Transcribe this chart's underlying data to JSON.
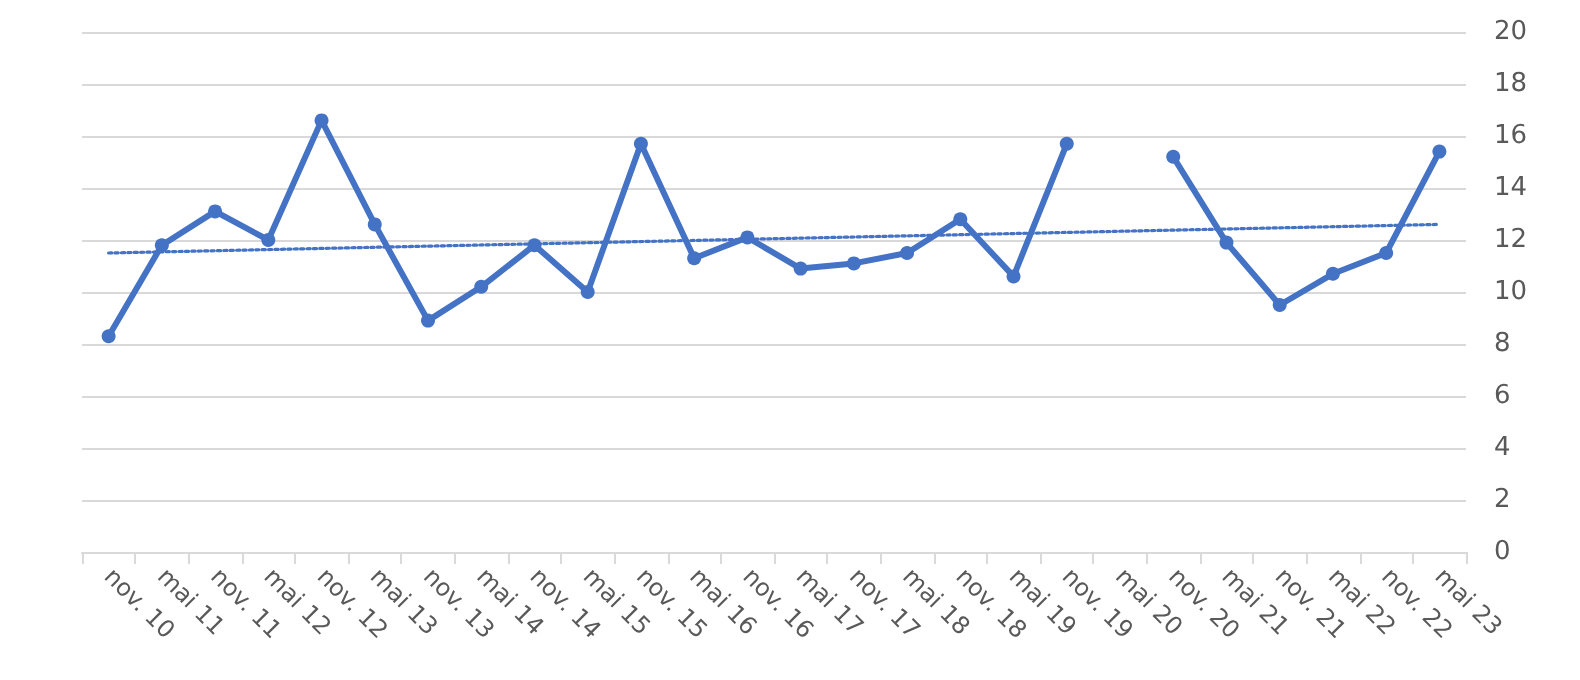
{
  "chart_data": {
    "type": "line",
    "categories": [
      "nov. 10",
      "mai 11",
      "nov. 11",
      "mai 12",
      "nov. 12",
      "mai 13",
      "nov. 13",
      "mai 14",
      "nov. 14",
      "mai 15",
      "nov. 15",
      "mai 16",
      "nov. 16",
      "mai 17",
      "nov. 17",
      "mai 18",
      "nov. 18",
      "mai 19",
      "nov. 19",
      "mai 20",
      "nov. 20",
      "mai 21",
      "nov. 21",
      "mai 22",
      "nov. 22",
      "mai 23"
    ],
    "series": [
      {
        "color": "#4472c4",
        "marker": "circle",
        "line_style": "solid",
        "values": [
          8.3,
          11.8,
          13.1,
          12.0,
          16.6,
          12.6,
          8.9,
          10.2,
          11.8,
          10.0,
          15.7,
          11.3,
          12.1,
          10.9,
          11.1,
          11.5,
          12.8,
          10.6,
          15.7,
          null,
          15.2,
          11.9,
          9.5,
          10.7,
          11.5,
          15.4
        ]
      },
      {
        "type": "line",
        "color": "#4472c4",
        "marker": "none",
        "line_style": "dotted",
        "x": [
          "nov. 10",
          "mai 23"
        ],
        "values": [
          11.5,
          12.6
        ]
      }
    ],
    "ylim": [
      0,
      20
    ],
    "yticks": [
      0,
      2,
      4,
      6,
      8,
      10,
      12,
      14,
      16,
      18,
      20
    ],
    "grid": "y"
  }
}
